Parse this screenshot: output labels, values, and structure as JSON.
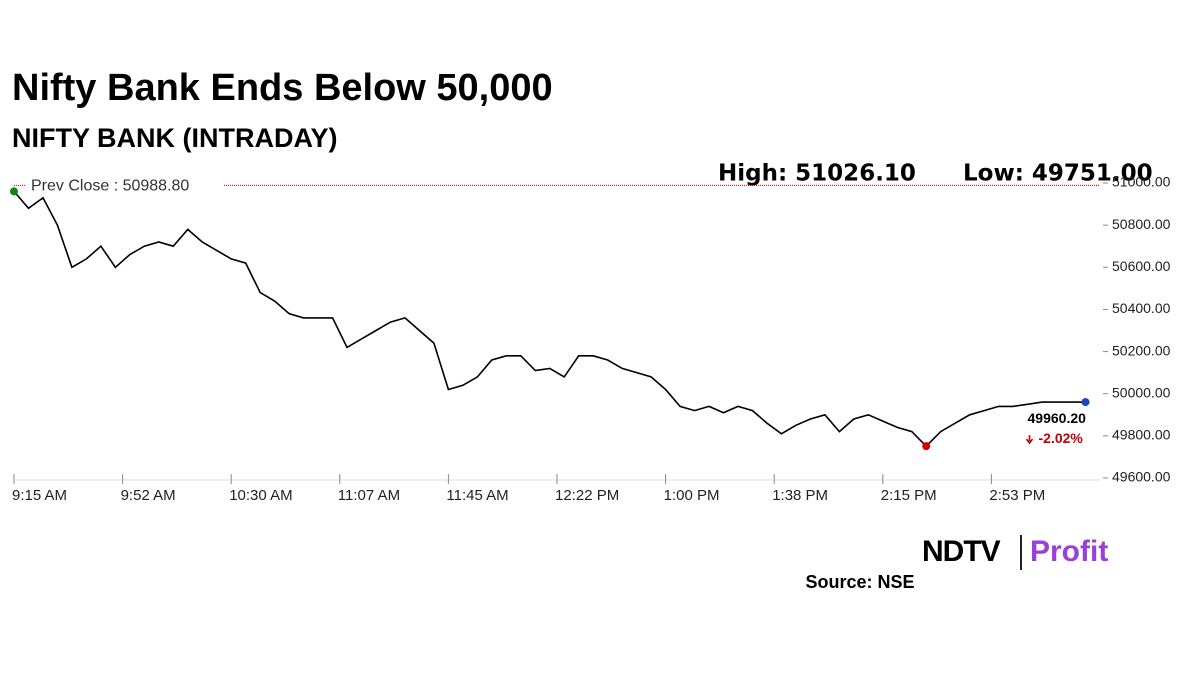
{
  "chart_data": {
    "type": "line",
    "title": "Nifty Bank Ends Below 50,000",
    "subtitle": "NIFTY BANK (INTRADAY)",
    "high": "High: 51026.10",
    "low": "Low: 49751.00",
    "prev_close": {
      "value": 50988.8,
      "label": "Prev Close : 50988.80"
    },
    "last_label": "49960.20",
    "change_label": "-2.02%",
    "source": "Source: NSE",
    "logo": [
      "NDTV",
      "Profit"
    ],
    "x": [
      555,
      560,
      565,
      570,
      575,
      580,
      585,
      590,
      595,
      600,
      605,
      610,
      615,
      620,
      625,
      630,
      635,
      640,
      645,
      650,
      655,
      660,
      665,
      670,
      675,
      680,
      685,
      690,
      695,
      700,
      705,
      710,
      715,
      720,
      725,
      730,
      735,
      740,
      745,
      750,
      755,
      760,
      765,
      770,
      775,
      780,
      785,
      790,
      795,
      800,
      805,
      810,
      815,
      820,
      825,
      830,
      835,
      840,
      845,
      850,
      855,
      860,
      865,
      870,
      875,
      880,
      885,
      890,
      895,
      900,
      905,
      910,
      915,
      920,
      925
    ],
    "series": [
      {
        "name": "NIFTY BANK",
        "color": "#000000",
        "values": [
          50960,
          50880,
          50930,
          50800,
          50600,
          50640,
          50700,
          50600,
          50660,
          50700,
          50720,
          50700,
          50780,
          50720,
          50680,
          50640,
          50620,
          50480,
          50440,
          50380,
          50360,
          50360,
          50360,
          50220,
          50260,
          50300,
          50340,
          50360,
          50300,
          50240,
          50020,
          50040,
          50080,
          50160,
          50180,
          50180,
          50110,
          50120,
          50080,
          50180,
          50180,
          50160,
          50120,
          50100,
          50080,
          50020,
          49940,
          49920,
          49940,
          49910,
          49940,
          49920,
          49860,
          49810,
          49850,
          49880,
          49900,
          49820,
          49880,
          49900,
          49870,
          49840,
          49820,
          49751,
          49820,
          49860,
          49900,
          49920,
          49940,
          49940,
          49950,
          49960,
          49960,
          49960,
          49960.2
        ]
      }
    ],
    "xlim": [
      555,
      930
    ],
    "xticks": [
      {
        "value": 555,
        "label": "9:15 AM"
      },
      {
        "value": 592.5,
        "label": "9:52 AM"
      },
      {
        "value": 630,
        "label": "10:30 AM"
      },
      {
        "value": 667.5,
        "label": "11:07 AM"
      },
      {
        "value": 705,
        "label": "11:45 AM"
      },
      {
        "value": 742.5,
        "label": "12:22 PM"
      },
      {
        "value": 780,
        "label": "1:00 PM"
      },
      {
        "value": 817.5,
        "label": "1:38 PM"
      },
      {
        "value": 855,
        "label": "2:15 PM"
      },
      {
        "value": 892.5,
        "label": "2:53 PM"
      }
    ],
    "ylim": [
      49600,
      51000
    ],
    "yticks": [
      {
        "value": 49600,
        "label": "49600.00"
      },
      {
        "value": 49800,
        "label": "49800.00"
      },
      {
        "value": 50000,
        "label": "50000.00"
      },
      {
        "value": 50200,
        "label": "50200.00"
      },
      {
        "value": 50400,
        "label": "50400.00"
      },
      {
        "value": 50600,
        "label": "50600.00"
      },
      {
        "value": 50800,
        "label": "50800.00"
      },
      {
        "value": 51000,
        "label": "51000.00"
      }
    ],
    "grid": false
  }
}
